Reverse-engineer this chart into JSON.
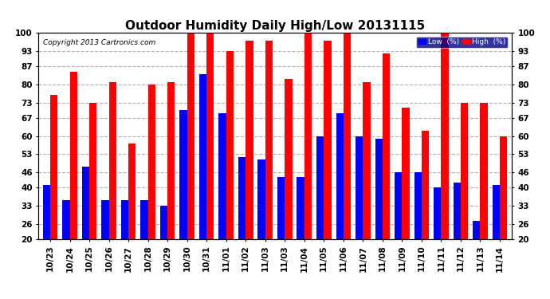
{
  "title": "Outdoor Humidity Daily High/Low 20131115",
  "copyright": "Copyright 2013 Cartronics.com",
  "legend_low": "Low  (%)",
  "legend_high": "High  (%)",
  "x_labels": [
    "10/23",
    "10/24",
    "10/25",
    "10/26",
    "10/27",
    "10/28",
    "10/29",
    "10/30",
    "10/31",
    "11/01",
    "11/02",
    "11/03",
    "11/03",
    "11/04",
    "11/05",
    "11/06",
    "11/07",
    "11/08",
    "11/09",
    "11/10",
    "11/11",
    "11/12",
    "11/13",
    "11/14"
  ],
  "high_values": [
    76,
    85,
    73,
    81,
    57,
    80,
    81,
    100,
    100,
    93,
    97,
    97,
    82,
    100,
    97,
    100,
    81,
    92,
    71,
    62,
    100,
    73,
    73,
    60
  ],
  "low_values": [
    41,
    35,
    48,
    35,
    35,
    35,
    33,
    70,
    84,
    69,
    52,
    51,
    44,
    44,
    60,
    69,
    60,
    59,
    46,
    46,
    40,
    42,
    27,
    41
  ],
  "ylim": [
    20,
    100
  ],
  "yticks": [
    20,
    26,
    33,
    40,
    46,
    53,
    60,
    67,
    73,
    80,
    87,
    93,
    100
  ],
  "bar_color_high": "#ff0000",
  "bar_color_low": "#0000ff",
  "bg_color": "#ffffff",
  "grid_color": "#b0b0b0",
  "title_fontsize": 11,
  "tick_fontsize": 7.5,
  "bar_width": 0.38
}
